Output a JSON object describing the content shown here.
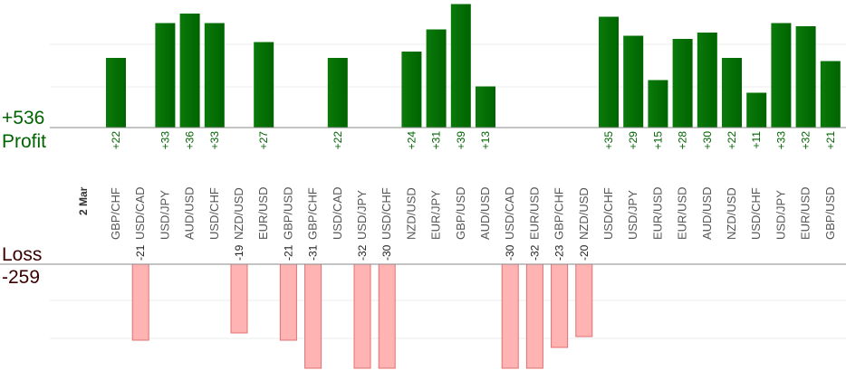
{
  "chart_data": {
    "type": "bar",
    "date_label": "2 Mar",
    "profit": {
      "total": "+536",
      "label": "Profit"
    },
    "loss": {
      "total": "-259",
      "label": "Loss"
    },
    "categories": [
      "GBP/CHF",
      "USD/CAD",
      "USD/JPY",
      "AUD/USD",
      "USD/CHF",
      "NZD/USD",
      "EUR/USD",
      "GBP/USD",
      "GBP/CHF",
      "USD/CAD",
      "USD/JPY",
      "USD/CHF",
      "NZD/USD",
      "EUR/JPY",
      "GBP/USD",
      "AUD/USD",
      "USD/CAD",
      "EUR/USD",
      "GBP/CHF",
      "NZD/USD",
      "USD/CHF",
      "USD/JPY",
      "EUR/USD",
      "EUR/USD",
      "AUD/USD",
      "NZD/USD",
      "USD/CHF",
      "USD/JPY",
      "EUR/USD",
      "GBP/USD"
    ],
    "series": [
      {
        "values": [
          22,
          -21,
          33,
          36,
          33,
          -19,
          27,
          -21,
          -31,
          22,
          -32,
          -30,
          24,
          31,
          39,
          13,
          -30,
          -32,
          -23,
          -20,
          35,
          29,
          15,
          28,
          30,
          22,
          11,
          33,
          32,
          21
        ]
      }
    ],
    "profit_ylim": [
      0,
      30
    ],
    "loss_ylim": [
      0,
      30
    ],
    "grid": true,
    "colors": {
      "profit_fill": "#006400",
      "profit_text": "#006400",
      "loss_fill": "#ffb3b3",
      "loss_stroke": "#e07070",
      "loss_text": "#3a0000",
      "axis_line": "#888888",
      "grid_line": "#eeeeee",
      "category_text": "#555555"
    }
  }
}
